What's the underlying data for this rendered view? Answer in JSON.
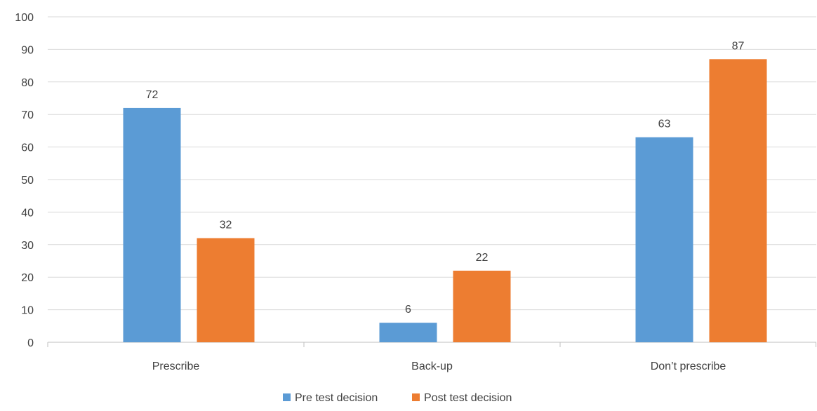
{
  "chart_data": {
    "type": "bar",
    "categories": [
      "Prescribe",
      "Back-up",
      "Don’t prescribe"
    ],
    "series": [
      {
        "name": "Pre test decision",
        "values": [
          72,
          6,
          63
        ],
        "color": "#5B9BD5"
      },
      {
        "name": "Post test decision",
        "values": [
          32,
          22,
          87
        ],
        "color": "#ED7D31"
      }
    ],
    "ylim": [
      0,
      100
    ],
    "yticks": [
      0,
      10,
      20,
      30,
      40,
      50,
      60,
      70,
      80,
      90,
      100
    ],
    "grid": true,
    "legend_position": "bottom",
    "title": "",
    "xlabel": "",
    "ylabel": ""
  }
}
